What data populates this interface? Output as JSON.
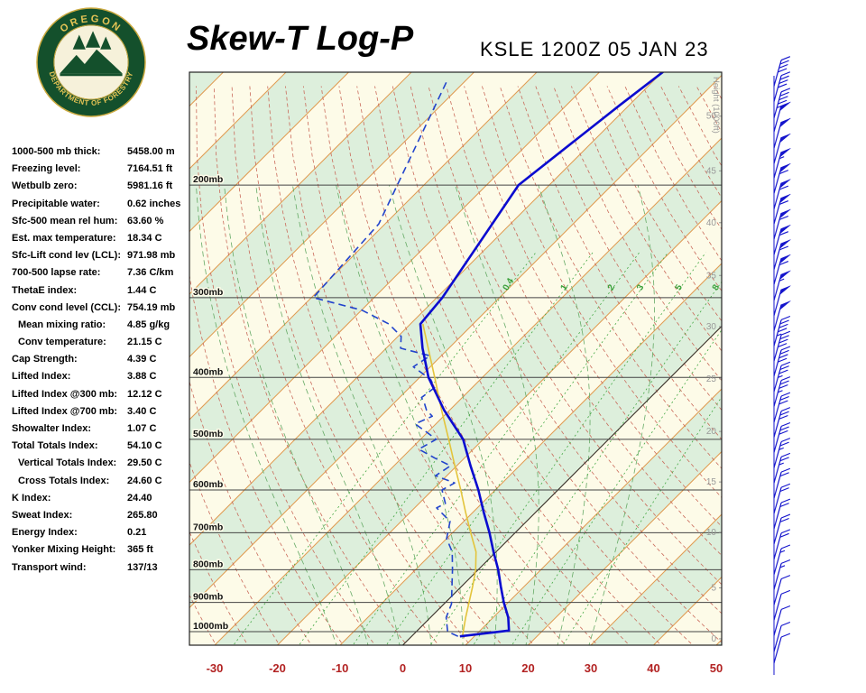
{
  "header": {
    "title": "Skew-T Log-P",
    "station": "KSLE 1200Z 05 JAN 23",
    "logo_top": "OREGON",
    "logo_bottom": "DEPARTMENT OF FORESTRY"
  },
  "stats": {
    "rows": [
      {
        "label": "1000-500 mb thick:",
        "value": "5458.00 m"
      },
      {
        "label": "Freezing level:",
        "value": "7164.51 ft"
      },
      {
        "label": "Wetbulb zero:",
        "value": "5981.16 ft"
      },
      {
        "label": "Precipitable water:",
        "value": "0.62 inches"
      },
      {
        "label": "Sfc-500 mean rel hum:",
        "value": "63.60 %"
      },
      {
        "label": "Est. max temperature:",
        "value": "18.34 C"
      },
      {
        "label": "Sfc-Lift cond lev (LCL):",
        "value": "971.98 mb"
      },
      {
        "label": "700-500 lapse rate:",
        "value": "7.36 C/km"
      },
      {
        "label": "ThetaE index:",
        "value": "1.44 C"
      },
      {
        "label": "Conv cond level (CCL):",
        "value": "754.19 mb"
      },
      {
        "label": "Mean mixing ratio:",
        "value": "4.85 g/kg",
        "indent": true
      },
      {
        "label": "Conv temperature:",
        "value": "21.15 C",
        "indent": true
      },
      {
        "label": "Cap Strength:",
        "value": "4.39 C"
      },
      {
        "label": "Lifted Index:",
        "value": "3.88 C"
      },
      {
        "label": "Lifted Index @300 mb:",
        "value": "12.12 C"
      },
      {
        "label": "Lifted Index @700 mb:",
        "value": "3.40 C"
      },
      {
        "label": "Showalter Index:",
        "value": "1.07 C"
      },
      {
        "label": "Total Totals Index:",
        "value": "54.10 C"
      },
      {
        "label": "Vertical Totals Index:",
        "value": "29.50 C",
        "indent": true
      },
      {
        "label": "Cross Totals Index:",
        "value": "24.60 C",
        "indent": true
      },
      {
        "label": "K Index:",
        "value": "24.40"
      },
      {
        "label": "Sweat Index:",
        "value": "265.80"
      },
      {
        "label": "Energy Index:",
        "value": "0.21"
      },
      {
        "label": "Yonker Mixing Height:",
        "value": "365 ft"
      },
      {
        "label": "Transport wind:",
        "value": "137/13"
      }
    ]
  },
  "chart_data": {
    "type": "skewt",
    "title": "Skew-T Log-P",
    "station": "KSLE 1200Z 05 JAN 23",
    "x_axis": {
      "ticks": [
        -30,
        -20,
        -10,
        0,
        10,
        20,
        30,
        40,
        50
      ],
      "units": "C"
    },
    "pressure_lines": [
      200,
      300,
      400,
      500,
      600,
      700,
      800,
      900,
      1000
    ],
    "pressure_label_suffix": "mb",
    "height_axis": {
      "title": "Height (1000ft)",
      "labels": [
        {
          "v": 0,
          "p": 1026
        },
        {
          "v": 5,
          "p": 854
        },
        {
          "v": 10,
          "p": 699
        },
        {
          "v": 15,
          "p": 583
        },
        {
          "v": 20,
          "p": 486
        },
        {
          "v": 25,
          "p": 402
        },
        {
          "v": 30,
          "p": 333
        },
        {
          "v": 35,
          "p": 277
        },
        {
          "v": 40,
          "p": 229
        },
        {
          "v": 45,
          "p": 190
        },
        {
          "v": 50,
          "p": 156
        }
      ]
    },
    "mixing_ratio_lines": [
      0.4,
      1,
      2,
      3,
      5,
      8,
      12,
      20
    ],
    "mixing_ratio_labeled": [
      0.4,
      1,
      2,
      3,
      5,
      8
    ],
    "temperature_profile": [
      [
        1017,
        7.7
      ],
      [
        996,
        14.6
      ],
      [
        950,
        12.4
      ],
      [
        900,
        9.3
      ],
      [
        850,
        6.3
      ],
      [
        800,
        3.2
      ],
      [
        750,
        -0.4
      ],
      [
        700,
        -4.1
      ],
      [
        650,
        -8.3
      ],
      [
        600,
        -12.7
      ],
      [
        550,
        -17.8
      ],
      [
        500,
        -23.2
      ],
      [
        450,
        -30.9
      ],
      [
        400,
        -38.6
      ],
      [
        360,
        -44.2
      ],
      [
        330,
        -48.4
      ],
      [
        300,
        -49.1
      ],
      [
        250,
        -51.7
      ],
      [
        200,
        -54.9
      ],
      [
        150,
        -51.5
      ],
      [
        133,
        -49.9
      ]
    ],
    "dewpoint_profile": [
      [
        1017,
        7.4
      ],
      [
        1000,
        5.0
      ],
      [
        950,
        2.5
      ],
      [
        905,
        1.2
      ],
      [
        850,
        -1.5
      ],
      [
        800,
        -4.1
      ],
      [
        750,
        -7.0
      ],
      [
        715,
        -10.0
      ],
      [
        672,
        -12.2
      ],
      [
        640,
        -16.5
      ],
      [
        630,
        -15.8
      ],
      [
        600,
        -18.5
      ],
      [
        585,
        -17.6
      ],
      [
        570,
        -21.8
      ],
      [
        550,
        -21.0
      ],
      [
        535,
        -24.7
      ],
      [
        518,
        -28.7
      ],
      [
        500,
        -27.5
      ],
      [
        488,
        -30.0
      ],
      [
        473,
        -33.3
      ],
      [
        460,
        -31.8
      ],
      [
        450,
        -33.7
      ],
      [
        440,
        -35.0
      ],
      [
        430,
        -36.5
      ],
      [
        415,
        -36.0
      ],
      [
        403,
        -37.9
      ],
      [
        385,
        -42.7
      ],
      [
        370,
        -41.8
      ],
      [
        360,
        -47.7
      ],
      [
        345,
        -49.5
      ],
      [
        330,
        -53.4
      ],
      [
        314,
        -59.9
      ],
      [
        300,
        -69.7
      ],
      [
        230,
        -71.0
      ],
      [
        137,
        -83.0
      ]
    ],
    "parcel_profile": [
      [
        1017,
        8.1
      ],
      [
        950,
        5.6
      ],
      [
        850,
        1.8
      ],
      [
        800,
        -0.4
      ],
      [
        750,
        -3.2
      ],
      [
        700,
        -7.1
      ],
      [
        650,
        -11.2
      ],
      [
        600,
        -15.5
      ],
      [
        550,
        -20.3
      ],
      [
        500,
        -25.5
      ],
      [
        450,
        -31.3
      ],
      [
        400,
        -37.6
      ],
      [
        360,
        -43.3
      ],
      [
        330,
        -48.0
      ]
    ],
    "wind_barbs": [
      {
        "p": 1120,
        "spd": 8
      },
      {
        "p": 1075,
        "spd": 8
      },
      {
        "p": 1014,
        "spd": 10
      },
      {
        "p": 959,
        "spd": 12
      },
      {
        "p": 908,
        "spd": 12
      },
      {
        "p": 859,
        "spd": 15
      },
      {
        "p": 814,
        "spd": 15
      },
      {
        "p": 770,
        "spd": 18
      },
      {
        "p": 729,
        "spd": 18
      },
      {
        "p": 690,
        "spd": 20
      },
      {
        "p": 653,
        "spd": 22
      },
      {
        "p": 618,
        "spd": 22
      },
      {
        "p": 585,
        "spd": 25
      },
      {
        "p": 554,
        "spd": 25
      },
      {
        "p": 524,
        "spd": 28
      },
      {
        "p": 496,
        "spd": 30
      },
      {
        "p": 470,
        "spd": 32
      },
      {
        "p": 444,
        "spd": 35
      },
      {
        "p": 421,
        "spd": 35
      },
      {
        "p": 398,
        "spd": 38
      },
      {
        "p": 377,
        "spd": 40
      },
      {
        "p": 357,
        "spd": 45
      },
      {
        "p": 338,
        "spd": 50
      },
      {
        "p": 320,
        "spd": 52
      },
      {
        "p": 303,
        "spd": 55
      },
      {
        "p": 286,
        "spd": 58
      },
      {
        "p": 271,
        "spd": 60
      },
      {
        "p": 257,
        "spd": 60
      },
      {
        "p": 243,
        "spd": 62
      },
      {
        "p": 230,
        "spd": 62
      },
      {
        "p": 218,
        "spd": 60
      },
      {
        "p": 206,
        "spd": 58
      },
      {
        "p": 195,
        "spd": 55
      },
      {
        "p": 185,
        "spd": 52
      },
      {
        "p": 175,
        "spd": 50
      },
      {
        "p": 165,
        "spd": 48
      },
      {
        "p": 157,
        "spd": 45
      },
      {
        "p": 148,
        "spd": 42
      },
      {
        "p": 140,
        "spd": 40
      }
    ],
    "colors": {
      "band_green": "#ddefdc",
      "band_cream": "#fdfbe8",
      "isotherm": "#e09a50",
      "dry_adiabat": "#c96a5a",
      "moist_adiabat": "#66aa66",
      "mixing_ratio": "#44a844",
      "pressure_line": "#444444",
      "zero_line": "#333333",
      "temperature": "#0b0bcf",
      "dewpoint": "#2244cc",
      "parcel": "#e3c43c",
      "axis_label": "#b22222",
      "height_label": "#999999",
      "barb": "#1414cc"
    }
  }
}
